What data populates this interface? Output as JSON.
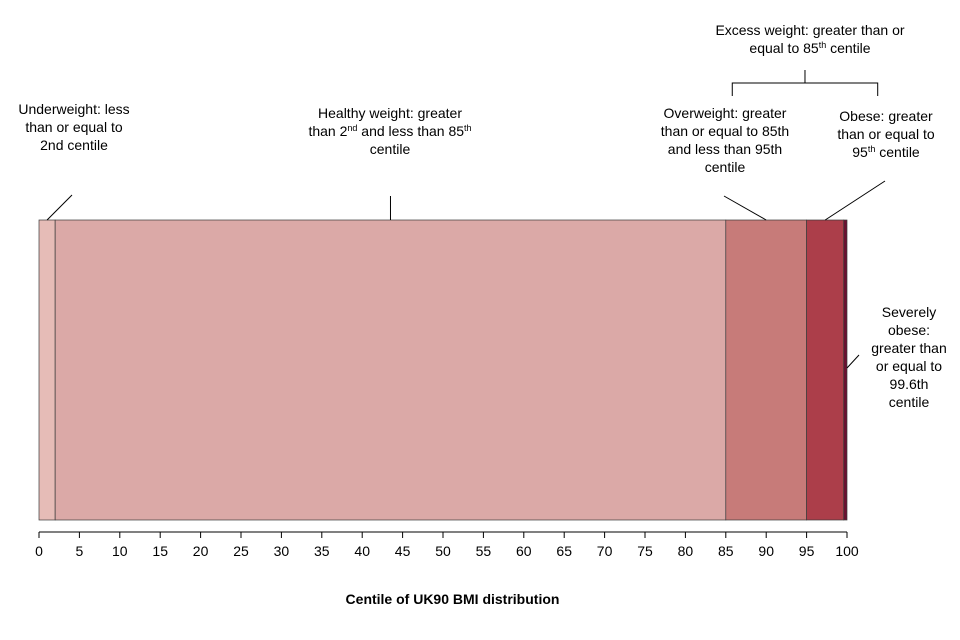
{
  "chart_data": {
    "type": "bar",
    "orientation": "horizontal-stacked",
    "title": "",
    "xlabel": "Centile of UK90 BMI distribution",
    "ylabel": "",
    "xlim": [
      0,
      100
    ],
    "xticks": [
      0,
      5,
      10,
      15,
      20,
      25,
      30,
      35,
      40,
      45,
      50,
      55,
      60,
      65,
      70,
      75,
      80,
      85,
      90,
      95,
      100
    ],
    "grid": false,
    "legend": "none",
    "segments": [
      {
        "name": "Underweight",
        "start": 0,
        "end": 2,
        "color": "#e6bcb7"
      },
      {
        "name": "Healthy weight",
        "start": 2,
        "end": 85,
        "color": "#dba9a7"
      },
      {
        "name": "Overweight",
        "start": 85,
        "end": 95,
        "color": "#c77b79"
      },
      {
        "name": "Obese",
        "start": 95,
        "end": 99.6,
        "color": "#ac3e4a"
      },
      {
        "name": "Severely obese",
        "start": 99.6,
        "end": 100,
        "color": "#6b1030"
      }
    ],
    "annotations": {
      "underweight": {
        "lines": [
          "Underweight: less",
          "than or equal to",
          "2nd centile"
        ]
      },
      "healthy": {
        "l1": "Healthy weight: greater",
        "l2a": "than 2",
        "l2sup1": "nd",
        "l2b": " and less than 85",
        "l2sup2": "th",
        "l3": "centile"
      },
      "overweight": {
        "lines": [
          "Overweight: greater",
          "than or equal to 85th",
          "and less than 95th",
          "centile"
        ]
      },
      "obese": {
        "l1": "Obese: greater",
        "l2": "than or equal to",
        "l3a": "95",
        "l3sup": "th",
        "l3b": " centile"
      },
      "excess": {
        "l1": "Excess weight: greater than or",
        "l2a": "equal to 85",
        "l2sup": "th",
        "l2b": " centile"
      },
      "severe": {
        "lines": [
          "Severely",
          "obese:",
          "greater than",
          "or equal to",
          "99.6th",
          "centile"
        ]
      }
    }
  }
}
